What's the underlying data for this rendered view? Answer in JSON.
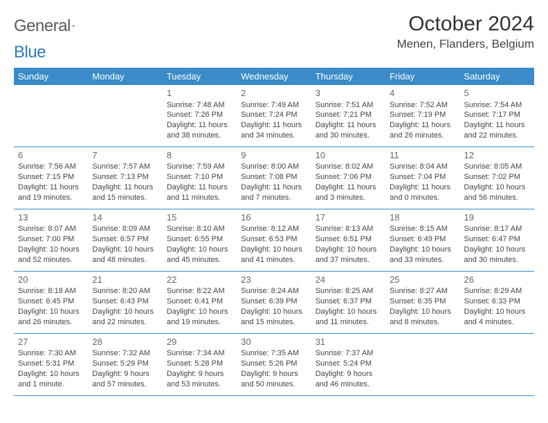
{
  "brand": {
    "word1": "General",
    "word2": "Blue"
  },
  "title": "October 2024",
  "location": "Menen, Flanders, Belgium",
  "colors": {
    "header_bg": "#3b8bc9",
    "header_text": "#ffffff",
    "rule": "#3b8bc9",
    "brand_gray": "#5a5a5a",
    "brand_blue": "#2d7bc0"
  },
  "day_headers": [
    "Sunday",
    "Monday",
    "Tuesday",
    "Wednesday",
    "Thursday",
    "Friday",
    "Saturday"
  ],
  "weeks": [
    [
      null,
      null,
      {
        "n": "1",
        "sr": "Sunrise: 7:48 AM",
        "ss": "Sunset: 7:26 PM",
        "dl1": "Daylight: 11 hours",
        "dl2": "and 38 minutes."
      },
      {
        "n": "2",
        "sr": "Sunrise: 7:49 AM",
        "ss": "Sunset: 7:24 PM",
        "dl1": "Daylight: 11 hours",
        "dl2": "and 34 minutes."
      },
      {
        "n": "3",
        "sr": "Sunrise: 7:51 AM",
        "ss": "Sunset: 7:21 PM",
        "dl1": "Daylight: 11 hours",
        "dl2": "and 30 minutes."
      },
      {
        "n": "4",
        "sr": "Sunrise: 7:52 AM",
        "ss": "Sunset: 7:19 PM",
        "dl1": "Daylight: 11 hours",
        "dl2": "and 26 minutes."
      },
      {
        "n": "5",
        "sr": "Sunrise: 7:54 AM",
        "ss": "Sunset: 7:17 PM",
        "dl1": "Daylight: 11 hours",
        "dl2": "and 22 minutes."
      }
    ],
    [
      {
        "n": "6",
        "sr": "Sunrise: 7:56 AM",
        "ss": "Sunset: 7:15 PM",
        "dl1": "Daylight: 11 hours",
        "dl2": "and 19 minutes."
      },
      {
        "n": "7",
        "sr": "Sunrise: 7:57 AM",
        "ss": "Sunset: 7:13 PM",
        "dl1": "Daylight: 11 hours",
        "dl2": "and 15 minutes."
      },
      {
        "n": "8",
        "sr": "Sunrise: 7:59 AM",
        "ss": "Sunset: 7:10 PM",
        "dl1": "Daylight: 11 hours",
        "dl2": "and 11 minutes."
      },
      {
        "n": "9",
        "sr": "Sunrise: 8:00 AM",
        "ss": "Sunset: 7:08 PM",
        "dl1": "Daylight: 11 hours",
        "dl2": "and 7 minutes."
      },
      {
        "n": "10",
        "sr": "Sunrise: 8:02 AM",
        "ss": "Sunset: 7:06 PM",
        "dl1": "Daylight: 11 hours",
        "dl2": "and 3 minutes."
      },
      {
        "n": "11",
        "sr": "Sunrise: 8:04 AM",
        "ss": "Sunset: 7:04 PM",
        "dl1": "Daylight: 11 hours",
        "dl2": "and 0 minutes."
      },
      {
        "n": "12",
        "sr": "Sunrise: 8:05 AM",
        "ss": "Sunset: 7:02 PM",
        "dl1": "Daylight: 10 hours",
        "dl2": "and 56 minutes."
      }
    ],
    [
      {
        "n": "13",
        "sr": "Sunrise: 8:07 AM",
        "ss": "Sunset: 7:00 PM",
        "dl1": "Daylight: 10 hours",
        "dl2": "and 52 minutes."
      },
      {
        "n": "14",
        "sr": "Sunrise: 8:09 AM",
        "ss": "Sunset: 6:57 PM",
        "dl1": "Daylight: 10 hours",
        "dl2": "and 48 minutes."
      },
      {
        "n": "15",
        "sr": "Sunrise: 8:10 AM",
        "ss": "Sunset: 6:55 PM",
        "dl1": "Daylight: 10 hours",
        "dl2": "and 45 minutes."
      },
      {
        "n": "16",
        "sr": "Sunrise: 8:12 AM",
        "ss": "Sunset: 6:53 PM",
        "dl1": "Daylight: 10 hours",
        "dl2": "and 41 minutes."
      },
      {
        "n": "17",
        "sr": "Sunrise: 8:13 AM",
        "ss": "Sunset: 6:51 PM",
        "dl1": "Daylight: 10 hours",
        "dl2": "and 37 minutes."
      },
      {
        "n": "18",
        "sr": "Sunrise: 8:15 AM",
        "ss": "Sunset: 6:49 PM",
        "dl1": "Daylight: 10 hours",
        "dl2": "and 33 minutes."
      },
      {
        "n": "19",
        "sr": "Sunrise: 8:17 AM",
        "ss": "Sunset: 6:47 PM",
        "dl1": "Daylight: 10 hours",
        "dl2": "and 30 minutes."
      }
    ],
    [
      {
        "n": "20",
        "sr": "Sunrise: 8:18 AM",
        "ss": "Sunset: 6:45 PM",
        "dl1": "Daylight: 10 hours",
        "dl2": "and 26 minutes."
      },
      {
        "n": "21",
        "sr": "Sunrise: 8:20 AM",
        "ss": "Sunset: 6:43 PM",
        "dl1": "Daylight: 10 hours",
        "dl2": "and 22 minutes."
      },
      {
        "n": "22",
        "sr": "Sunrise: 8:22 AM",
        "ss": "Sunset: 6:41 PM",
        "dl1": "Daylight: 10 hours",
        "dl2": "and 19 minutes."
      },
      {
        "n": "23",
        "sr": "Sunrise: 8:24 AM",
        "ss": "Sunset: 6:39 PM",
        "dl1": "Daylight: 10 hours",
        "dl2": "and 15 minutes."
      },
      {
        "n": "24",
        "sr": "Sunrise: 8:25 AM",
        "ss": "Sunset: 6:37 PM",
        "dl1": "Daylight: 10 hours",
        "dl2": "and 11 minutes."
      },
      {
        "n": "25",
        "sr": "Sunrise: 8:27 AM",
        "ss": "Sunset: 6:35 PM",
        "dl1": "Daylight: 10 hours",
        "dl2": "and 8 minutes."
      },
      {
        "n": "26",
        "sr": "Sunrise: 8:29 AM",
        "ss": "Sunset: 6:33 PM",
        "dl1": "Daylight: 10 hours",
        "dl2": "and 4 minutes."
      }
    ],
    [
      {
        "n": "27",
        "sr": "Sunrise: 7:30 AM",
        "ss": "Sunset: 5:31 PM",
        "dl1": "Daylight: 10 hours",
        "dl2": "and 1 minute."
      },
      {
        "n": "28",
        "sr": "Sunrise: 7:32 AM",
        "ss": "Sunset: 5:29 PM",
        "dl1": "Daylight: 9 hours",
        "dl2": "and 57 minutes."
      },
      {
        "n": "29",
        "sr": "Sunrise: 7:34 AM",
        "ss": "Sunset: 5:28 PM",
        "dl1": "Daylight: 9 hours",
        "dl2": "and 53 minutes."
      },
      {
        "n": "30",
        "sr": "Sunrise: 7:35 AM",
        "ss": "Sunset: 5:26 PM",
        "dl1": "Daylight: 9 hours",
        "dl2": "and 50 minutes."
      },
      {
        "n": "31",
        "sr": "Sunrise: 7:37 AM",
        "ss": "Sunset: 5:24 PM",
        "dl1": "Daylight: 9 hours",
        "dl2": "and 46 minutes."
      },
      null,
      null
    ]
  ]
}
